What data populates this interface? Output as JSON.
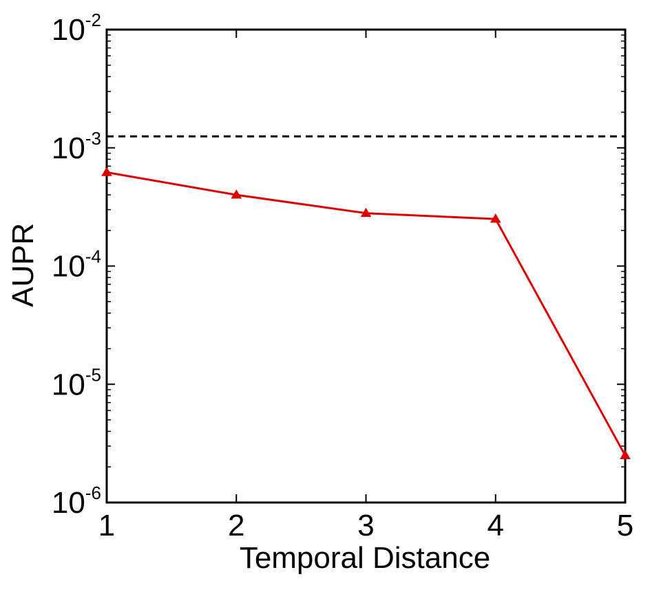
{
  "chart_data": {
    "type": "line",
    "title": "",
    "xlabel": "Temporal Distance",
    "ylabel": "AUPR",
    "x": [
      1,
      2,
      3,
      4,
      5
    ],
    "xlim": [
      1,
      5
    ],
    "xticks": [
      "1",
      "2",
      "3",
      "4",
      "5"
    ],
    "yscale": "log",
    "ylim": [
      1e-06,
      0.01
    ],
    "yticks": [
      {
        "value": 1e-06,
        "base": "10",
        "exp": "-6"
      },
      {
        "value": 1e-05,
        "base": "10",
        "exp": "-5"
      },
      {
        "value": 0.0001,
        "base": "10",
        "exp": "-4"
      },
      {
        "value": 0.001,
        "base": "10",
        "exp": "-3"
      },
      {
        "value": 0.01,
        "base": "10",
        "exp": "-2"
      }
    ],
    "series": [
      {
        "values": [
          0.00062,
          0.0004,
          0.00028,
          0.00025,
          2.5e-06
        ],
        "color": "#dd0000",
        "marker": "triangle",
        "line_style": "solid"
      }
    ],
    "reference_line": {
      "value": 0.00125,
      "color": "#000000",
      "line_style": "dashed"
    },
    "grid": false,
    "legend": "none"
  }
}
